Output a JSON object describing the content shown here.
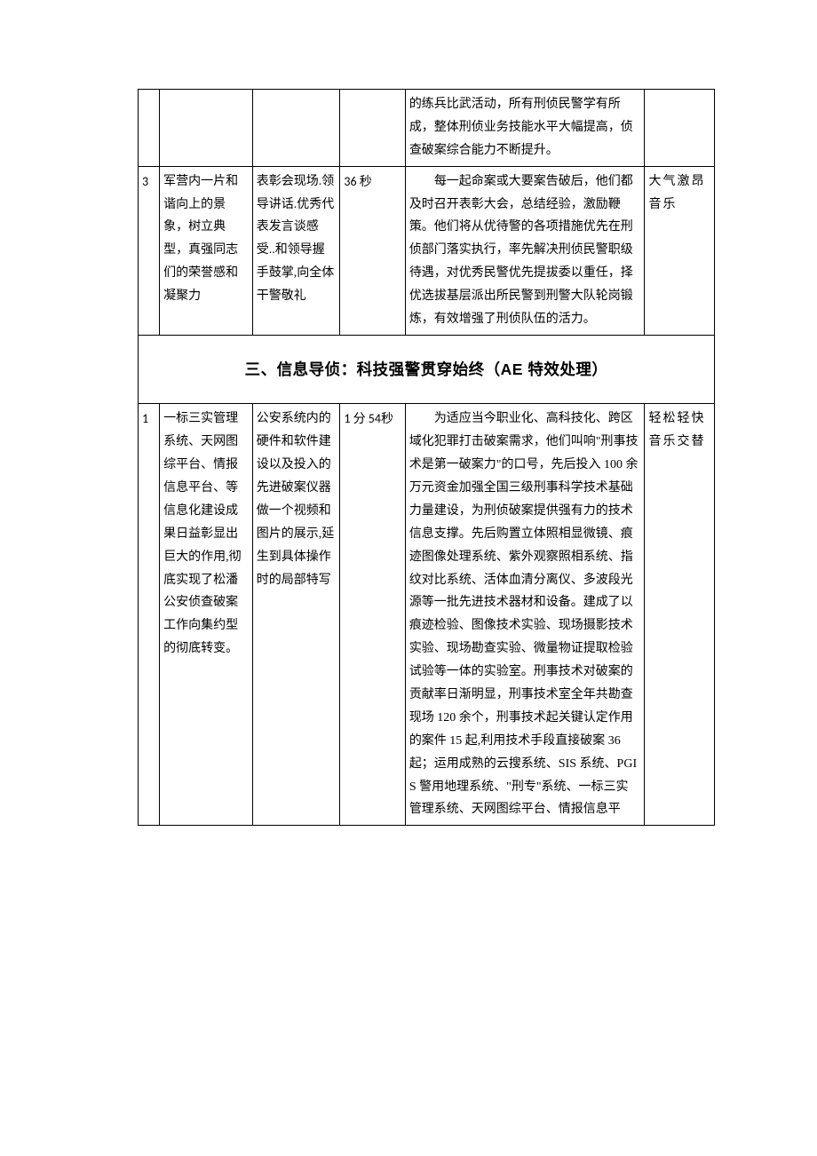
{
  "rows": [
    {
      "c1": "",
      "c2": "",
      "c3": "",
      "c4": "",
      "c5": "的练兵比武活动，所有刑侦民警学有所成，整体刑侦业务技能水平大幅提高，侦查破案综合能力不断提升。",
      "c6": ""
    },
    {
      "c1": "3",
      "c2": "军营内一片和谐向上的景象，树立典型，真强同志们的荣誉感和凝聚力",
      "c3": "表彰会现场.领导讲话.优秀代表发言谈感受..和领导握手鼓掌,向全体干警敬礼",
      "c4": "36 秒",
      "c5": "每一起命案或大要案告破后，他们都及时召开表彰大会，总结经验，激励鞭策。他们将从优待警的各项措施优先在刑侦部门落实执行，率先解决刑侦民警职级待遇，对优秀民警优先提拔委以重任，择优选拔基层派出所民警到刑警大队轮岗锻炼，有效增强了刑侦队伍的活力。",
      "c6": "大气激昂音乐"
    }
  ],
  "section_header": "三、信息导侦：科技强警贯穿始终（AE 特效处理）",
  "rows2": [
    {
      "c1": "1",
      "c2": "一标三实管理系统、天网图综平台、情报信息平台、等信息化建设成果日益彰显出巨大的作用,彻底实现了松潘公安侦查破案工作向集约型的彻底转变。",
      "c3": "公安系统内的硬件和软件建设以及投入的先进破案仪器做一个视频和图片的展示,延生到具体操作时的局部特写",
      "c4": "1 分 54秒",
      "c5": "为适应当今职业化、高科技化、跨区域化犯罪打击破案需求，他们叫响\"刑事技术是第一破案力\"的口号，先后投入 100 余万元资金加强全国三级刑事科学技术基础力量建设，为刑侦破案提供强有力的技术信息支撑。先后购置立体照相显微镜、痕迹图像处理系统、紫外观察照相系统、指纹对比系统、活体血清分离仪、多波段光源等一批先进技术器材和设备。建成了以痕迹检验、图像技术实验、现场摄影技术实验、现场勘查实验、微量物证提取检验试验等一体的实验室。刑事技术对破案的贡献率日渐明显，刑事技术室全年共勘查现场 120 余个，刑事技术起关键认定作用的案件 15 起,利用技术手段直接破案 36 起；运用成熟的云搜系统、SIS 系统、PGIS 警用地理系统、\"刑专\"系统、一标三实管理系统、天网图综平台、情报信息平",
      "c6": "轻松轻快音乐交替"
    }
  ]
}
